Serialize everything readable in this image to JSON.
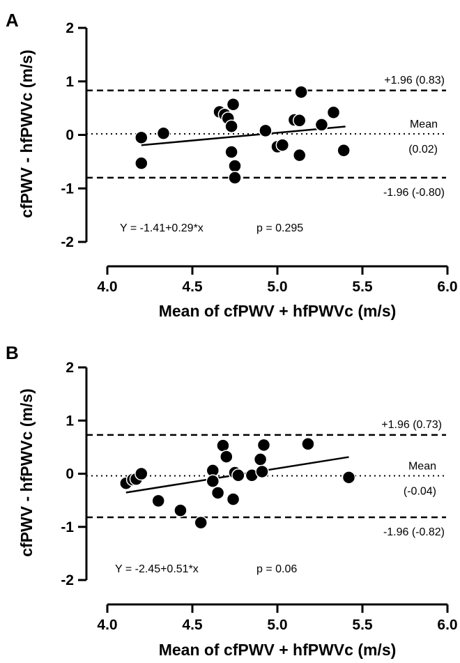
{
  "chart_data": [
    {
      "type": "scatter",
      "panel_label": "A",
      "xlabel": "Mean of cfPWV + hfPWVc (m/s)",
      "ylabel": "cfPWV - hfPWVc (m/s)",
      "xlim": [
        4.0,
        6.0
      ],
      "ylim": [
        -2,
        2
      ],
      "xticks": [
        "4.0",
        "4.5",
        "5.0",
        "5.5",
        "6.0"
      ],
      "yticks": [
        "2",
        "1",
        "0",
        "-1",
        "-2"
      ],
      "points": [
        {
          "x": 4.2,
          "y": -0.05
        },
        {
          "x": 4.2,
          "y": -0.53
        },
        {
          "x": 4.33,
          "y": 0.03
        },
        {
          "x": 4.66,
          "y": 0.43
        },
        {
          "x": 4.69,
          "y": 0.38
        },
        {
          "x": 4.71,
          "y": 0.31
        },
        {
          "x": 4.73,
          "y": 0.16
        },
        {
          "x": 4.74,
          "y": 0.57
        },
        {
          "x": 4.73,
          "y": -0.32
        },
        {
          "x": 4.75,
          "y": -0.58
        },
        {
          "x": 4.75,
          "y": -0.8
        },
        {
          "x": 4.93,
          "y": 0.08
        },
        {
          "x": 5.0,
          "y": -0.22
        },
        {
          "x": 5.03,
          "y": -0.19
        },
        {
          "x": 5.1,
          "y": 0.28
        },
        {
          "x": 5.13,
          "y": 0.27
        },
        {
          "x": 5.14,
          "y": 0.8
        },
        {
          "x": 5.13,
          "y": -0.38
        },
        {
          "x": 5.26,
          "y": 0.19
        },
        {
          "x": 5.33,
          "y": 0.42
        },
        {
          "x": 5.39,
          "y": -0.29
        }
      ],
      "regression": {
        "x": [
          4.2,
          5.4
        ],
        "y": [
          -0.192,
          0.156
        ]
      },
      "upper_loa": 0.83,
      "mean": 0.02,
      "lower_loa": -0.8,
      "upper_loa_label": "+1.96 (0.83)",
      "mean_label": "Mean",
      "mean_value_label": "(0.02)",
      "lower_loa_label": "-1.96 (-0.80)",
      "equation": "Y = -1.41+0.29*x",
      "p_value": "p = 0.295"
    },
    {
      "type": "scatter",
      "panel_label": "B",
      "xlabel": "Mean of cfPWV + hfPWVc (m/s)",
      "ylabel": "cfPWV - hfPWVc (m/s)",
      "xlim": [
        4.0,
        6.0
      ],
      "ylim": [
        -2,
        2
      ],
      "xticks": [
        "4.0",
        "4.5",
        "5.0",
        "5.5",
        "6.0"
      ],
      "yticks": [
        "2",
        "1",
        "0",
        "-1",
        "-2"
      ],
      "points": [
        {
          "x": 4.11,
          "y": -0.18
        },
        {
          "x": 4.15,
          "y": -0.11
        },
        {
          "x": 4.17,
          "y": -0.1
        },
        {
          "x": 4.2,
          "y": 0.0
        },
        {
          "x": 4.3,
          "y": -0.51
        },
        {
          "x": 4.43,
          "y": -0.69
        },
        {
          "x": 4.55,
          "y": -0.92
        },
        {
          "x": 4.62,
          "y": 0.06
        },
        {
          "x": 4.62,
          "y": -0.14
        },
        {
          "x": 4.65,
          "y": -0.36
        },
        {
          "x": 4.68,
          "y": 0.53
        },
        {
          "x": 4.7,
          "y": 0.32
        },
        {
          "x": 4.74,
          "y": -0.48
        },
        {
          "x": 4.75,
          "y": 0.02
        },
        {
          "x": 4.77,
          "y": -0.03
        },
        {
          "x": 4.85,
          "y": -0.03
        },
        {
          "x": 4.9,
          "y": 0.27
        },
        {
          "x": 4.91,
          "y": 0.04
        },
        {
          "x": 4.92,
          "y": 0.54
        },
        {
          "x": 5.18,
          "y": 0.56
        },
        {
          "x": 5.42,
          "y": -0.07
        }
      ],
      "regression": {
        "x": [
          4.11,
          5.42
        ],
        "y": [
          -0.354,
          0.314
        ]
      },
      "upper_loa": 0.73,
      "mean": -0.04,
      "lower_loa": -0.82,
      "upper_loa_label": "+1.96 (0.73)",
      "mean_label": "Mean",
      "mean_value_label": "(-0.04)",
      "lower_loa_label": "-1.96 (-0.82)",
      "equation": "Y = -2.45+0.51*x",
      "p_value": "p = 0.06"
    }
  ]
}
